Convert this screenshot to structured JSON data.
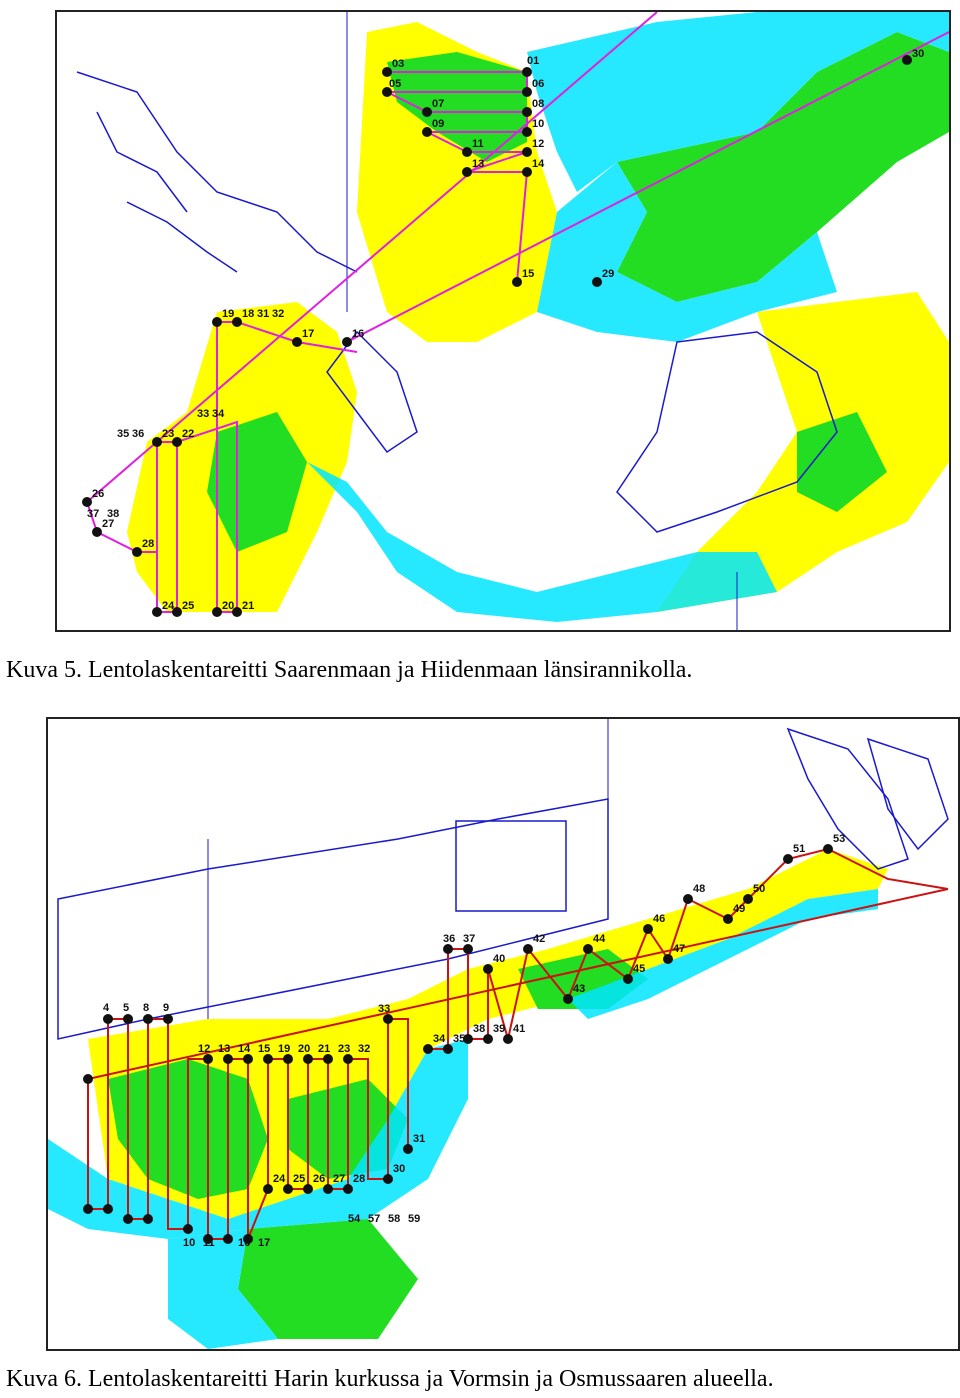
{
  "figures": [
    {
      "caption": "Kuva 5. Lentolaskentareitti Saarenmaan ja Hiidenmaan länsirannikolla.",
      "waypoints": [
        "01",
        "03",
        "05",
        "06",
        "07",
        "08",
        "09",
        "10",
        "11",
        "12",
        "13",
        "14",
        "15",
        "16",
        "17",
        "18",
        "19",
        "20",
        "21",
        "22",
        "23",
        "24",
        "25",
        "26",
        "27",
        "28",
        "29",
        "30",
        "31",
        "32",
        "33",
        "34",
        "35",
        "36",
        "37",
        "38"
      ]
    },
    {
      "caption": "Kuva 6. Lentolaskentareitti Harin kurkussa ja Vormsin ja Osmussaaren alueella.",
      "waypoints": [
        "4",
        "5",
        "8",
        "9",
        "10",
        "11",
        "12",
        "13",
        "14",
        "15",
        "16",
        "17",
        "19",
        "20",
        "21",
        "23",
        "24",
        "25",
        "26",
        "27",
        "28",
        "30",
        "31",
        "32",
        "33",
        "34",
        "35",
        "36",
        "37",
        "38",
        "39",
        "40",
        "41",
        "42",
        "43",
        "44",
        "45",
        "46",
        "47",
        "48",
        "49",
        "50",
        "51",
        "53",
        "54",
        "57",
        "58",
        "59"
      ]
    }
  ],
  "colors": {
    "coast_line": "#1a1acc",
    "deep_water": "#00e5ff",
    "shallow_zone": "#22dd22",
    "coastal_zone": "#ffff00",
    "route_magenta": "#e020e0",
    "route_red": "#cc1111",
    "waypoint": "#111111"
  }
}
